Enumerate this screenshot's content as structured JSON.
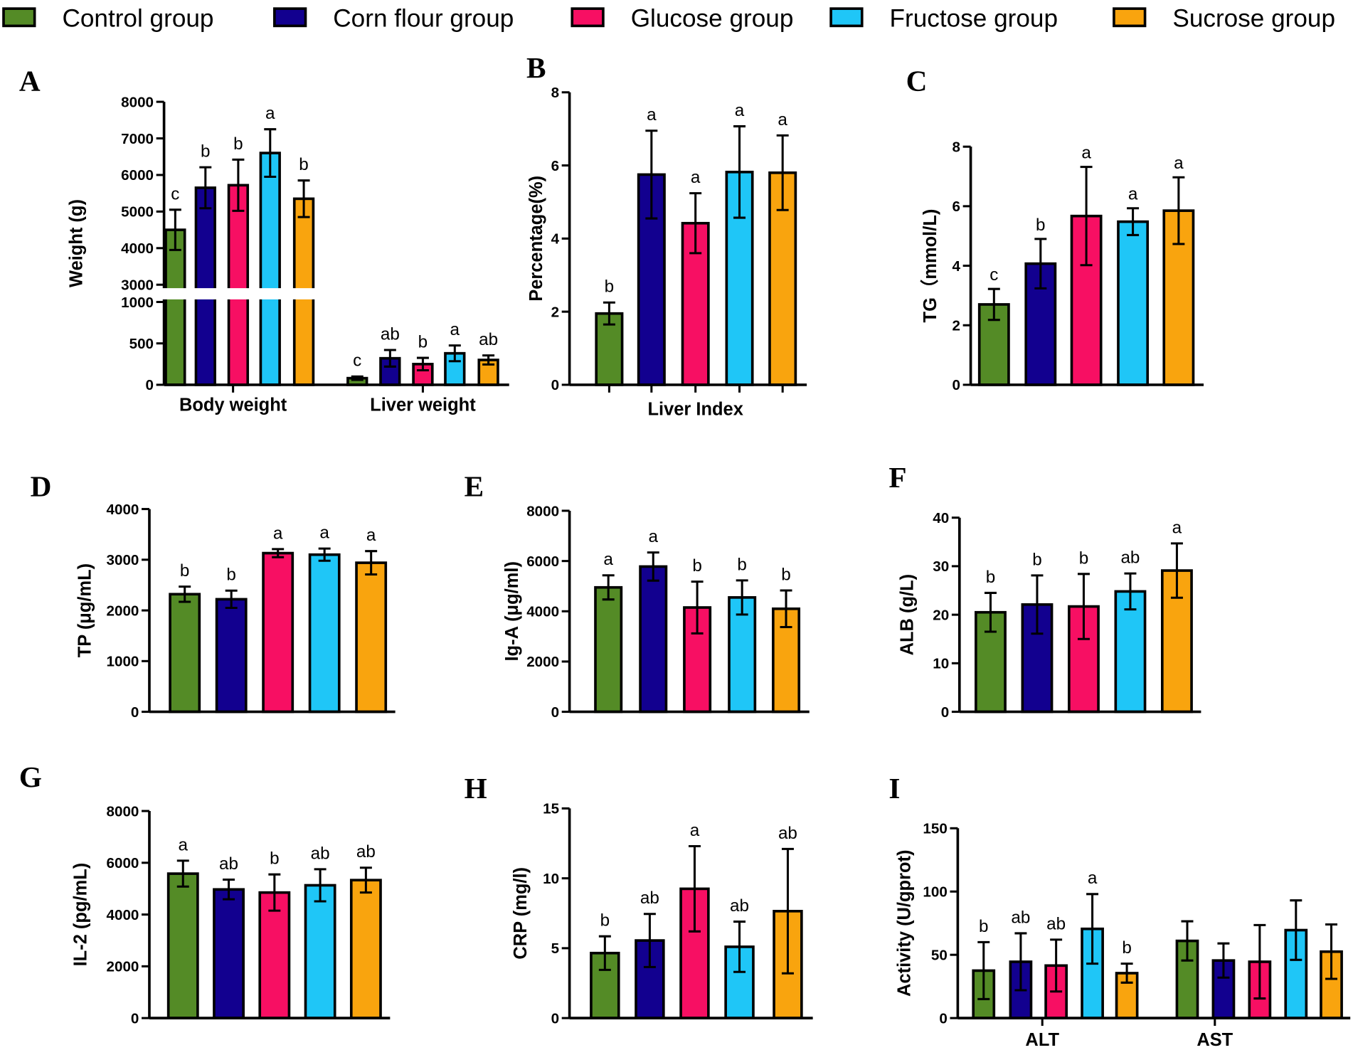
{
  "chart_data": {
    "type": "bar",
    "legend": {
      "placement": "top",
      "entries": [
        "Control group",
        "Corn flour group",
        "Glucose group",
        "Fructose group",
        "Sucrose group"
      ]
    },
    "colors": [
      "#548b26",
      "#12008f",
      "#f70f63",
      "#1fc6f7",
      "#f9a40e"
    ],
    "panels": [
      {
        "letter": "A",
        "ylabel": "Weight (g)",
        "yticks": [
          0,
          500,
          1000,
          3000,
          4000,
          5000,
          6000,
          7000,
          8000
        ],
        "ylim": [
          0,
          8000
        ],
        "axis_break": [
          1000,
          3000
        ],
        "groups": [
          {
            "label": "Body weight",
            "values": [
              4500,
              5650,
              5720,
              6600,
              5350
            ],
            "errors": [
              550,
              560,
              700,
              650,
              500
            ],
            "letters": [
              "c",
              "b",
              "b",
              "a",
              "b"
            ]
          },
          {
            "label": "Liver weight",
            "values": [
              80,
              320,
              250,
              380,
              300
            ],
            "errors": [
              20,
              100,
              75,
              95,
              55
            ],
            "letters": [
              "c",
              "ab",
              "b",
              "a",
              "ab"
            ]
          }
        ]
      },
      {
        "letter": "B",
        "ylabel": "Percentage(%)",
        "yticks": [
          0,
          2,
          4,
          6,
          8
        ],
        "ylim": [
          0,
          8
        ],
        "groups": [
          {
            "label": "Liver Index",
            "values": [
              1.95,
              5.75,
              4.42,
              5.82,
              5.8
            ],
            "errors": [
              0.3,
              1.2,
              0.82,
              1.25,
              1.02
            ],
            "letters": [
              "b",
              "a",
              "a",
              "a",
              "a"
            ]
          }
        ]
      },
      {
        "letter": "C",
        "ylabel": "TG（mmol/L)",
        "yticks": [
          0,
          2,
          4,
          6,
          8
        ],
        "ylim": [
          0,
          8
        ],
        "groups": [
          {
            "label": "",
            "values": [
              2.7,
              4.07,
              5.67,
              5.48,
              5.85
            ],
            "errors": [
              0.52,
              0.83,
              1.65,
              0.45,
              1.12
            ],
            "letters": [
              "c",
              "b",
              "a",
              "a",
              "a"
            ]
          }
        ]
      },
      {
        "letter": "D",
        "ylabel": "TP (μg/mL)",
        "yticks": [
          0,
          1000,
          2000,
          3000,
          4000
        ],
        "ylim": [
          0,
          4000
        ],
        "groups": [
          {
            "label": "",
            "values": [
              2320,
              2220,
              3130,
              3100,
              2940
            ],
            "errors": [
              150,
              170,
              80,
              120,
              230
            ],
            "letters": [
              "b",
              "b",
              "a",
              "a",
              "a"
            ]
          }
        ]
      },
      {
        "letter": "E",
        "ylabel": "Ig-A (μg/ml)",
        "yticks": [
          0,
          2000,
          4000,
          6000,
          8000
        ],
        "ylim": [
          0,
          8000
        ],
        "groups": [
          {
            "label": "",
            "values": [
              4950,
              5780,
              4150,
              4550,
              4100
            ],
            "errors": [
              480,
              560,
              1030,
              680,
              730
            ],
            "letters": [
              "a",
              "a",
              "b",
              "b",
              "b"
            ]
          }
        ]
      },
      {
        "letter": "F",
        "ylabel": "ALB (g/L)",
        "yticks": [
          0,
          10,
          20,
          30,
          40
        ],
        "ylim": [
          0,
          40
        ],
        "groups": [
          {
            "label": "",
            "values": [
              20.5,
              22.1,
              21.7,
              24.8,
              29.1
            ],
            "errors": [
              4,
              6,
              6.7,
              3.7,
              5.6
            ],
            "letters": [
              "b",
              "b",
              "b",
              "ab",
              "a"
            ]
          }
        ]
      },
      {
        "letter": "G",
        "ylabel": "IL-2 (pg/mL)",
        "yticks": [
          0,
          2000,
          4000,
          6000,
          8000
        ],
        "ylim": [
          0,
          8000
        ],
        "groups": [
          {
            "label": "",
            "values": [
              5580,
              4970,
              4850,
              5130,
              5330
            ],
            "errors": [
              500,
              380,
              700,
              620,
              480
            ],
            "letters": [
              "a",
              "ab",
              "b",
              "ab",
              "ab"
            ]
          }
        ]
      },
      {
        "letter": "H",
        "ylabel": "CRP (mg/l)",
        "yticks": [
          0,
          5,
          10,
          15
        ],
        "ylim": [
          0,
          15
        ],
        "groups": [
          {
            "label": "",
            "values": [
              4.65,
              5.55,
              9.25,
              5.1,
              7.65
            ],
            "errors": [
              1.2,
              1.9,
              3.05,
              1.8,
              4.45
            ],
            "letters": [
              "b",
              "ab",
              "a",
              "ab",
              "ab"
            ]
          }
        ]
      },
      {
        "letter": "I",
        "ylabel": "Activity (U/gprot)",
        "yticks": [
          0,
          50,
          100,
          150
        ],
        "ylim": [
          0,
          150
        ],
        "groups": [
          {
            "label": "ALT",
            "values": [
              37.5,
              44.5,
              41.5,
              70.5,
              35.5
            ],
            "errors": [
              22.5,
              22.5,
              20.5,
              27.5,
              7.5
            ],
            "letters": [
              "b",
              "ab",
              "ab",
              "a",
              "b"
            ]
          },
          {
            "label": "AST",
            "values": [
              61,
              45.5,
              44.5,
              69.5,
              52.5
            ],
            "errors": [
              15.5,
              13.5,
              29,
              23.5,
              21.5
            ],
            "letters": [
              "",
              "",
              "",
              "",
              ""
            ]
          }
        ]
      }
    ]
  }
}
